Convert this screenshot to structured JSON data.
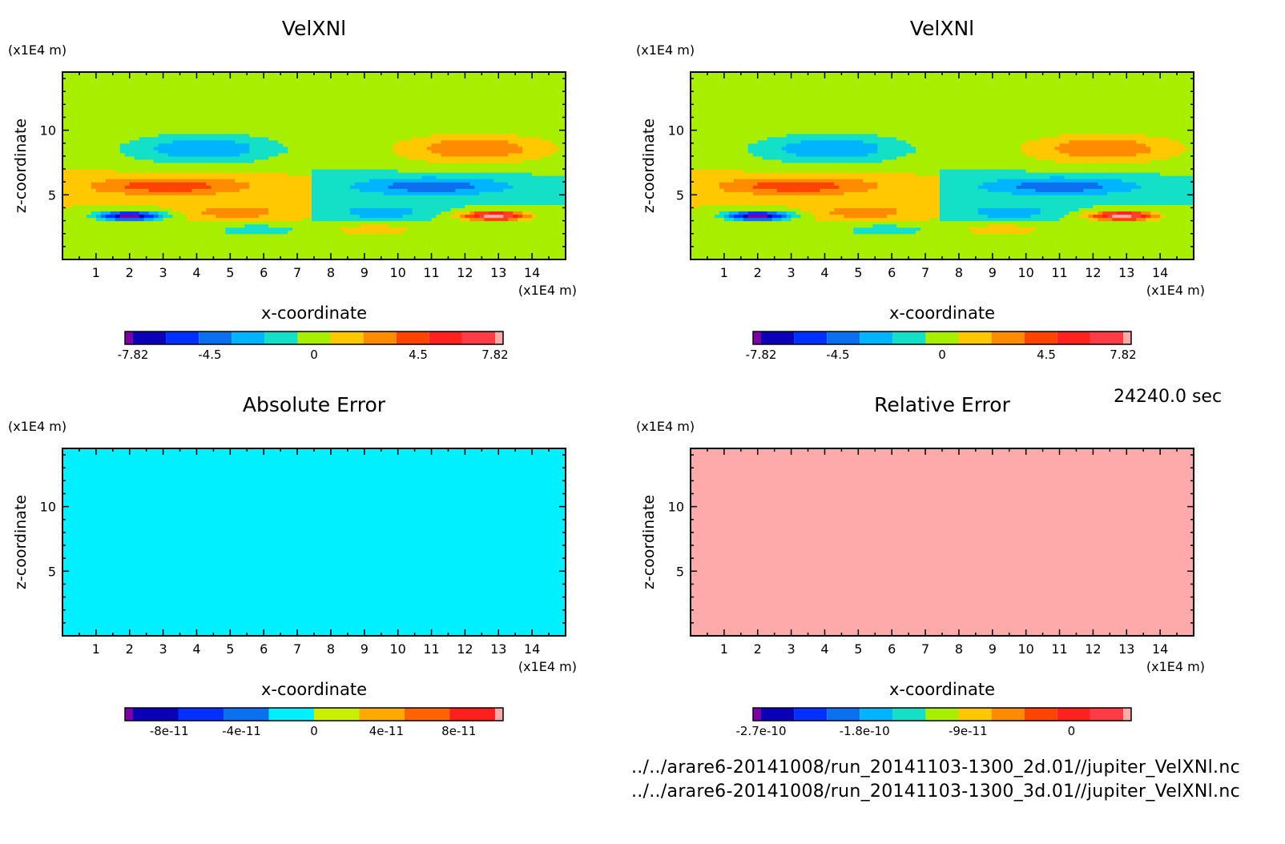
{
  "time_label": "24240.0 sec",
  "source_files": [
    "../../arare6-20141008/run_20141103-1300_2d.01//jupiter_VelXNl.nc",
    "../../arare6-20141008/run_20141103-1300_3d.01//jupiter_VelXNl.nc"
  ],
  "chart_data": [
    {
      "type": "heatmap",
      "title": "VelXNl",
      "xlabel": "x-coordinate",
      "ylabel": "z-coordinate",
      "x_unit": "(x1E4 m)",
      "y_unit": "(x1E4 m)",
      "xlim": [
        0,
        15
      ],
      "ylim": [
        0,
        14.5
      ],
      "xticks": [
        "1",
        "2",
        "3",
        "4",
        "5",
        "6",
        "7",
        "8",
        "9",
        "10",
        "11",
        "12",
        "13",
        "14"
      ],
      "yticks": [
        "5",
        "10"
      ],
      "colorbar": {
        "colors": [
          "#7b00a8",
          "#0b00b8",
          "#0030ff",
          "#0a70f0",
          "#00b4ff",
          "#14e0c8",
          "#a8ee00",
          "#ffc800",
          "#ff8c00",
          "#ff4400",
          "#ff2020",
          "#ff3c46",
          "#ffaaaa"
        ],
        "tick_labels": [
          "-7.82",
          "-4.5",
          "0",
          "4.5",
          "7.82"
        ],
        "tick_values": [
          -7.82,
          -4.5,
          0,
          4.5,
          7.82
        ],
        "range": [
          -7.82,
          7.82
        ]
      },
      "field": "velocity"
    },
    {
      "type": "heatmap",
      "title": "VelXNl",
      "xlabel": "x-coordinate",
      "ylabel": "z-coordinate",
      "x_unit": "(x1E4 m)",
      "y_unit": "(x1E4 m)",
      "xlim": [
        0,
        15
      ],
      "ylim": [
        0,
        14.5
      ],
      "xticks": [
        "1",
        "2",
        "3",
        "4",
        "5",
        "6",
        "7",
        "8",
        "9",
        "10",
        "11",
        "12",
        "13",
        "14"
      ],
      "yticks": [
        "5",
        "10"
      ],
      "colorbar": {
        "colors": [
          "#7b00a8",
          "#0b00b8",
          "#0030ff",
          "#0a70f0",
          "#00b4ff",
          "#14e0c8",
          "#a8ee00",
          "#ffc800",
          "#ff8c00",
          "#ff4400",
          "#ff2020",
          "#ff3c46",
          "#ffaaaa"
        ],
        "tick_labels": [
          "-7.82",
          "-4.5",
          "0",
          "4.5",
          "7.82"
        ],
        "tick_values": [
          -7.82,
          -4.5,
          0,
          4.5,
          7.82
        ],
        "range": [
          -7.82,
          7.82
        ]
      },
      "field": "velocity"
    },
    {
      "type": "heatmap",
      "title": "Absolute Error",
      "xlabel": "x-coordinate",
      "ylabel": "z-coordinate",
      "x_unit": "(x1E4 m)",
      "y_unit": "(x1E4 m)",
      "xlim": [
        0,
        15
      ],
      "ylim": [
        0,
        14.5
      ],
      "xticks": [
        "1",
        "2",
        "3",
        "4",
        "5",
        "6",
        "7",
        "8",
        "9",
        "10",
        "11",
        "12",
        "13",
        "14"
      ],
      "yticks": [
        "5",
        "10"
      ],
      "colorbar": {
        "colors": [
          "#7b00a8",
          "#0b00b8",
          "#0030ff",
          "#0a70f0",
          "#00f0ff",
          "#c8f000",
          "#ffaa00",
          "#ff6400",
          "#ff1e1e",
          "#ffaaaa"
        ],
        "tick_labels": [
          "-8e-11",
          "-4e-11",
          "0",
          "4e-11",
          "8e-11"
        ],
        "tick_values": [
          -8e-11,
          -4e-11,
          0,
          4e-11,
          8e-11
        ],
        "range": [
          -1e-10,
          1e-10
        ]
      },
      "field": "abs_error"
    },
    {
      "type": "heatmap",
      "title": "Relative Error",
      "xlabel": "x-coordinate",
      "ylabel": "z-coordinate",
      "x_unit": "(x1E4 m)",
      "y_unit": "(x1E4 m)",
      "xlim": [
        0,
        15
      ],
      "ylim": [
        0,
        14.5
      ],
      "xticks": [
        "1",
        "2",
        "3",
        "4",
        "5",
        "6",
        "7",
        "8",
        "9",
        "10",
        "11",
        "12",
        "13",
        "14"
      ],
      "yticks": [
        "5",
        "10"
      ],
      "colorbar": {
        "colors": [
          "#7b00a8",
          "#0b00b8",
          "#0030ff",
          "#0a70f0",
          "#00b4ff",
          "#14e0c8",
          "#a8ee00",
          "#ffc800",
          "#ff8c00",
          "#ff4400",
          "#ff2020",
          "#ff3c46",
          "#ffaaaa"
        ],
        "tick_labels": [
          "-2.7e-10",
          "-1.8e-10",
          "-9e-11",
          "0"
        ],
        "tick_values": [
          -2.7e-10,
          -1.8e-10,
          -9e-11,
          0
        ],
        "range": [
          -2.7e-10,
          4.5e-11
        ]
      },
      "field": "rel_error"
    }
  ]
}
